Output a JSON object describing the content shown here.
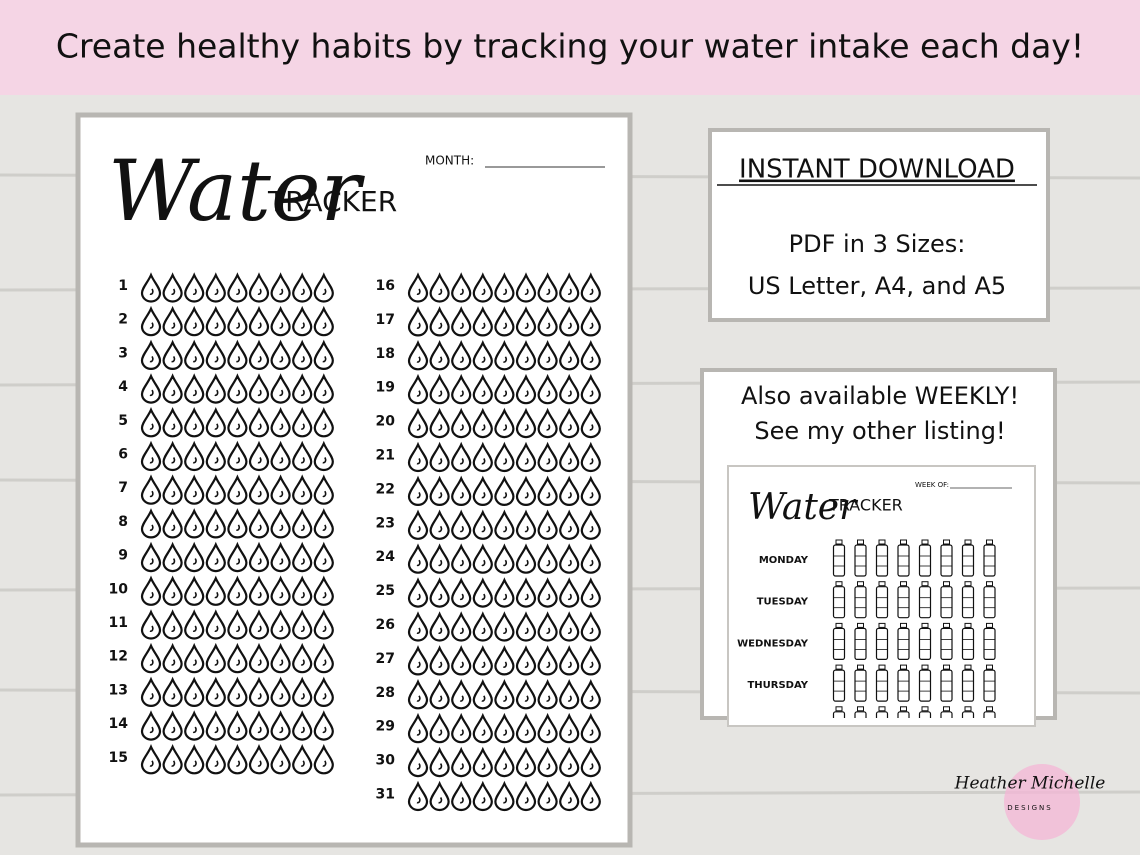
{
  "banner": {
    "text": "Create healthy habits by tracking your water intake each day!"
  },
  "tracker": {
    "script_title": "Water",
    "title": "TRACKER",
    "month_label": "MONTH:",
    "days": [
      "1",
      "2",
      "3",
      "4",
      "5",
      "6",
      "7",
      "8",
      "9",
      "10",
      "11",
      "12",
      "13",
      "14",
      "15",
      "16",
      "17",
      "18",
      "19",
      "20",
      "21",
      "22",
      "23",
      "24",
      "25",
      "26",
      "27",
      "28",
      "29",
      "30",
      "31"
    ]
  },
  "download_card": {
    "heading": "INSTANT DOWNLOAD",
    "lines": [
      "PDF in 3 Sizes:",
      "US Letter, A4, and A5"
    ]
  },
  "weekly_card": {
    "lines": [
      "Also available WEEKLY!",
      "See my other listing!"
    ],
    "preview": {
      "script_title": "Water",
      "title": "TRACKER",
      "week_label": "WEEK OF:",
      "days": [
        "MONDAY",
        "TUESDAY",
        "WEDNESDAY",
        "THURSDAY"
      ]
    }
  },
  "logo": {
    "name": "Heather Michelle",
    "subtitle": "DESIGNS"
  }
}
